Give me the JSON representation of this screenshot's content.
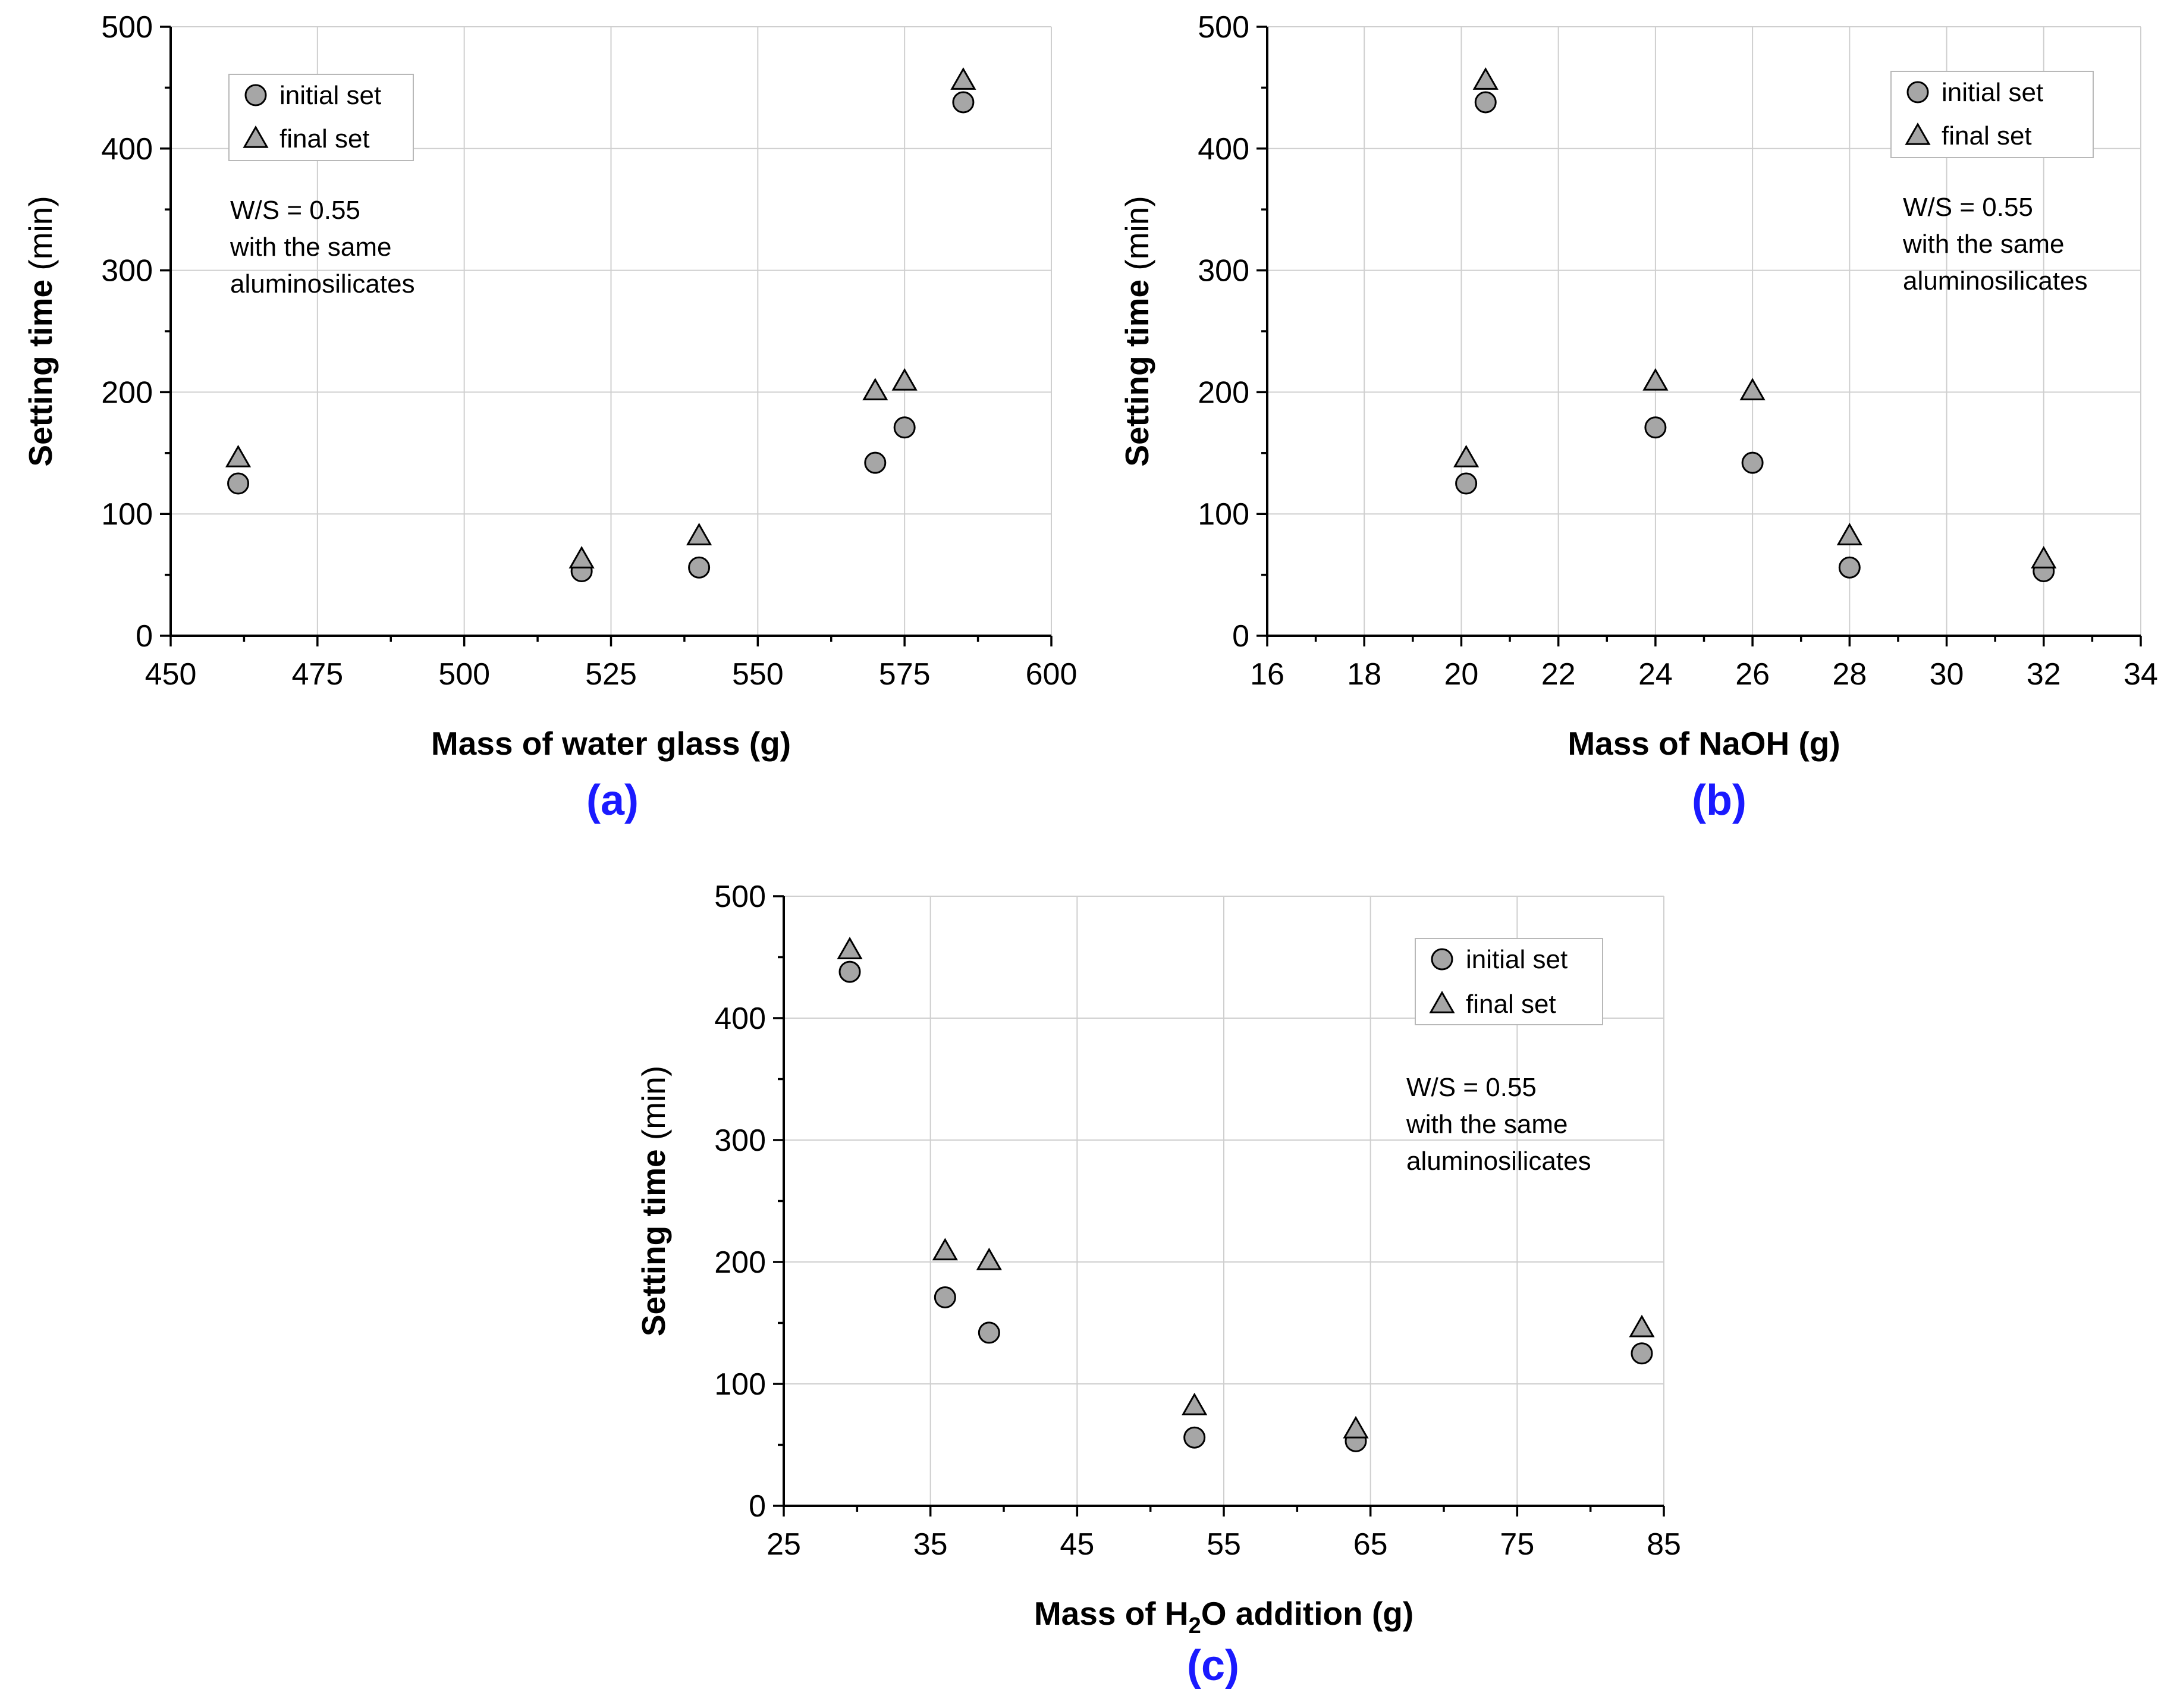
{
  "chart_data": [
    {
      "type": "scatter",
      "panel": "(a)",
      "xlabel": "Mass of water glass (g)",
      "ylabel": "Setting time",
      "ylabel_unit": "(min)",
      "xlim": [
        450,
        600
      ],
      "ylim": [
        0,
        500
      ],
      "xticks": [
        "450",
        "475",
        "500",
        "525",
        "550",
        "575",
        "600"
      ],
      "yticks": [
        "0",
        "100",
        "200",
        "300",
        "400",
        "500"
      ],
      "legend_position": "top-left",
      "annotation": [
        "W/S = 0.55",
        "with the same",
        "aluminosilicates"
      ],
      "series": [
        {
          "name": "initial set",
          "marker": "circle",
          "x": [
            461.5,
            520,
            540,
            570,
            575,
            585
          ],
          "y": [
            125,
            53,
            56,
            142,
            171,
            438
          ]
        },
        {
          "name": "final set",
          "marker": "triangle",
          "x": [
            461.5,
            520,
            540,
            570,
            575,
            585
          ],
          "y": [
            146,
            63,
            82,
            201,
            209,
            456
          ]
        }
      ]
    },
    {
      "type": "scatter",
      "panel": "(b)",
      "xlabel": "Mass of NaOH (g)",
      "ylabel": "Setting time",
      "ylabel_unit": "(min)",
      "xlim": [
        16,
        34
      ],
      "ylim": [
        0,
        500
      ],
      "xticks": [
        "16",
        "18",
        "20",
        "22",
        "24",
        "26",
        "28",
        "30",
        "32",
        "34"
      ],
      "yticks": [
        "0",
        "100",
        "200",
        "300",
        "400",
        "500"
      ],
      "legend_position": "top-right",
      "annotation": [
        "W/S = 0.55",
        "with the same",
        "aluminosilicates"
      ],
      "series": [
        {
          "name": "initial set",
          "marker": "circle",
          "x": [
            20.1,
            20.5,
            24,
            26,
            28,
            32
          ],
          "y": [
            125,
            438,
            171,
            142,
            56,
            53
          ]
        },
        {
          "name": "final set",
          "marker": "triangle",
          "x": [
            20.1,
            20.5,
            24,
            26,
            28,
            32
          ],
          "y": [
            146,
            456,
            209,
            201,
            82,
            63
          ]
        }
      ]
    },
    {
      "type": "scatter",
      "panel": "(c)",
      "xlabel_parts": [
        "Mass of H",
        "2",
        "O addition (g)"
      ],
      "ylabel": "Setting time",
      "ylabel_unit": "(min)",
      "xlim": [
        25,
        85
      ],
      "ylim": [
        0,
        500
      ],
      "xticks": [
        "25",
        "35",
        "45",
        "55",
        "65",
        "75",
        "85"
      ],
      "yticks": [
        "0",
        "100",
        "200",
        "300",
        "400",
        "500"
      ],
      "legend_position": "top-right",
      "annotation": [
        "W/S = 0.55",
        "with the same",
        "aluminosilicates"
      ],
      "series": [
        {
          "name": "initial set",
          "marker": "circle",
          "x": [
            29.5,
            36,
            39,
            53,
            64,
            83.5
          ],
          "y": [
            438,
            171,
            142,
            56,
            53,
            125
          ]
        },
        {
          "name": "final set",
          "marker": "triangle",
          "x": [
            29.5,
            36,
            39,
            53,
            64,
            83.5
          ],
          "y": [
            456,
            209,
            201,
            82,
            63,
            146
          ]
        }
      ]
    }
  ]
}
